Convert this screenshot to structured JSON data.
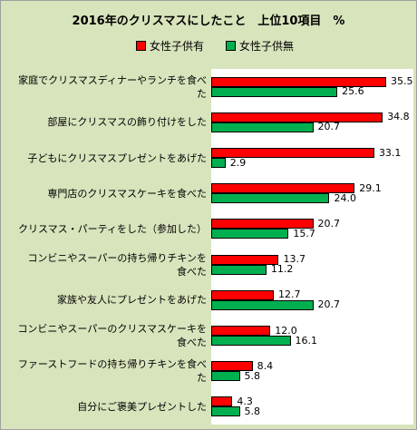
{
  "chart_data": {
    "type": "bar",
    "orientation": "horizontal",
    "title": "2016年のクリスマスにしたこと　上位10項目　%",
    "categories": [
      "家庭でクリスマスディナーやランチを食べた",
      "部屋にクリスマスの飾り付けをした",
      "子どもにクリスマスプレゼントをあげた",
      "専門店のクリスマスケーキを食べた",
      "クリスマス・パーティをした（参加した）",
      "コンビニやスーパーの持ち帰りチキンを食べた",
      "家族や友人にプレゼントをあげた",
      "コンビニやスーパーのクリスマスケーキを食べた",
      "ファーストフードの持ち帰りチキンを食べた",
      "自分にご褒美プレゼントした"
    ],
    "category_lines": [
      [
        "家庭でクリスマスディナーやランチを食べ",
        "た"
      ],
      [
        "部屋にクリスマスの飾り付けをした"
      ],
      [
        "子どもにクリスマスプレゼントをあげた"
      ],
      [
        "専門店のクリスマスケーキを食べた"
      ],
      [
        "クリスマス・パーティをした（参加した）"
      ],
      [
        "コンビニやスーパーの持ち帰りチキンを",
        "食べた"
      ],
      [
        "家族や友人にプレゼントをあげた"
      ],
      [
        "コンビニやスーパーのクリスマスケーキを",
        "食べた"
      ],
      [
        "ファーストフードの持ち帰りチキンを食べ",
        "た"
      ],
      [
        "自分にご褒美プレゼントした"
      ]
    ],
    "series": [
      {
        "name": "女性子供有",
        "color": "#ff0000",
        "values": [
          35.5,
          34.8,
          33.1,
          29.1,
          20.7,
          13.7,
          12.7,
          12.0,
          8.4,
          4.3
        ]
      },
      {
        "name": "女性子供無",
        "color": "#00b050",
        "values": [
          25.6,
          20.7,
          2.9,
          24.0,
          15.7,
          11.2,
          20.7,
          16.1,
          5.8,
          5.8
        ]
      }
    ],
    "value_labels": [
      [
        "35.5",
        "34.8",
        "33.1",
        "29.1",
        "20.7",
        "13.7",
        "12.7",
        "12.0",
        "8.4",
        "4.3"
      ],
      [
        "25.6",
        "20.7",
        "2.9",
        "24.0",
        "15.7",
        "11.2",
        "20.7",
        "16.1",
        "5.8",
        "5.8"
      ]
    ],
    "xlim": [
      0,
      40
    ],
    "legend": "top",
    "grid": false,
    "xlabel": "",
    "ylabel": ""
  }
}
